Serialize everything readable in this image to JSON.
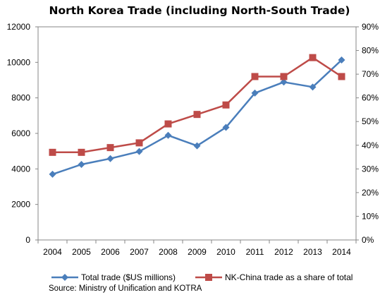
{
  "chart_data": {
    "type": "line",
    "title": "North Korea Trade (including North-South Trade)",
    "categories": [
      "2004",
      "2005",
      "2006",
      "2007",
      "2008",
      "2009",
      "2010",
      "2011",
      "2012",
      "2013",
      "2014"
    ],
    "series": [
      {
        "name": "Total trade ($US millions)",
        "axis": "left",
        "color": "#4A7EBB",
        "marker": "diamond",
        "values": [
          3700,
          4250,
          4580,
          4980,
          5890,
          5300,
          6340,
          8270,
          8890,
          8610,
          10130
        ]
      },
      {
        "name": "NK-China trade as a share of total",
        "axis": "right",
        "color": "#BE4B48",
        "marker": "square",
        "values": [
          0.37,
          0.37,
          0.39,
          0.41,
          0.49,
          0.53,
          0.57,
          0.69,
          0.69,
          0.77,
          0.69
        ]
      }
    ],
    "y_left": {
      "min": 0,
      "max": 12000,
      "ticks": [
        "0",
        "2000",
        "4000",
        "6000",
        "8000",
        "10000",
        "12000"
      ]
    },
    "y_right": {
      "min": 0,
      "max": 0.9,
      "ticks": [
        "0%",
        "10%",
        "20%",
        "30%",
        "40%",
        "50%",
        "60%",
        "70%",
        "80%",
        "90%"
      ]
    },
    "grid": false,
    "legend_position": "bottom",
    "source": "Source: Ministry of Unification and KOTRA"
  }
}
